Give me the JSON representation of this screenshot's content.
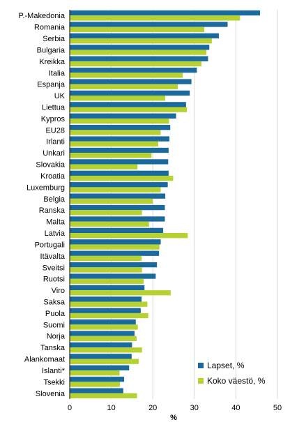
{
  "chart_data": {
    "type": "bar",
    "orientation": "horizontal",
    "categories": [
      "P.-Makedonia",
      "Romania",
      "Serbia",
      "Bulgaria",
      "Kreikka",
      "Italia",
      "Espanja",
      "UK",
      "Liettua",
      "Kypros",
      "EU28",
      "Irlanti",
      "Unkari",
      "Slovakia",
      "Kroatia",
      "Luxemburg",
      "Belgia",
      "Ranska",
      "Malta",
      "Latvia",
      "Portugali",
      "Itävalta",
      "Sveitsi",
      "Ruotsi",
      "Viro",
      "Saksa",
      "Puola",
      "Suomi",
      "Norja",
      "Tanska",
      "Alankomaat",
      "Islanti*",
      "Tsekki",
      "Slovenia"
    ],
    "series": [
      {
        "name": "Lapset, %",
        "color": "#1a6a9c",
        "values": [
          45.8,
          38.0,
          35.9,
          33.6,
          33.3,
          30.6,
          29.3,
          28.9,
          28.0,
          25.6,
          24.2,
          24.0,
          23.8,
          23.7,
          23.8,
          23.6,
          23.0,
          22.9,
          22.9,
          22.5,
          21.9,
          21.5,
          21.0,
          20.7,
          18.0,
          17.3,
          17.1,
          15.9,
          15.6,
          15.0,
          14.9,
          14.3,
          13.1,
          12.9
        ]
      },
      {
        "name": "Koko väestö, %",
        "color": "#b6d232",
        "values": [
          41.0,
          32.4,
          34.2,
          32.9,
          31.7,
          27.2,
          26.0,
          23.0,
          28.2,
          23.9,
          21.9,
          21.3,
          19.7,
          16.3,
          24.9,
          21.9,
          20.0,
          17.4,
          19.1,
          28.4,
          21.6,
          17.3,
          17.4,
          17.8,
          24.3,
          18.7,
          18.9,
          16.4,
          16.1,
          17.4,
          16.6,
          12.0,
          12.1,
          16.2
        ]
      }
    ],
    "xlim": [
      0,
      50
    ],
    "xticks": [
      0,
      10,
      20,
      30,
      40,
      50
    ],
    "xlabel": "%",
    "grid": "vertical",
    "legend_position": "bottom-right"
  }
}
